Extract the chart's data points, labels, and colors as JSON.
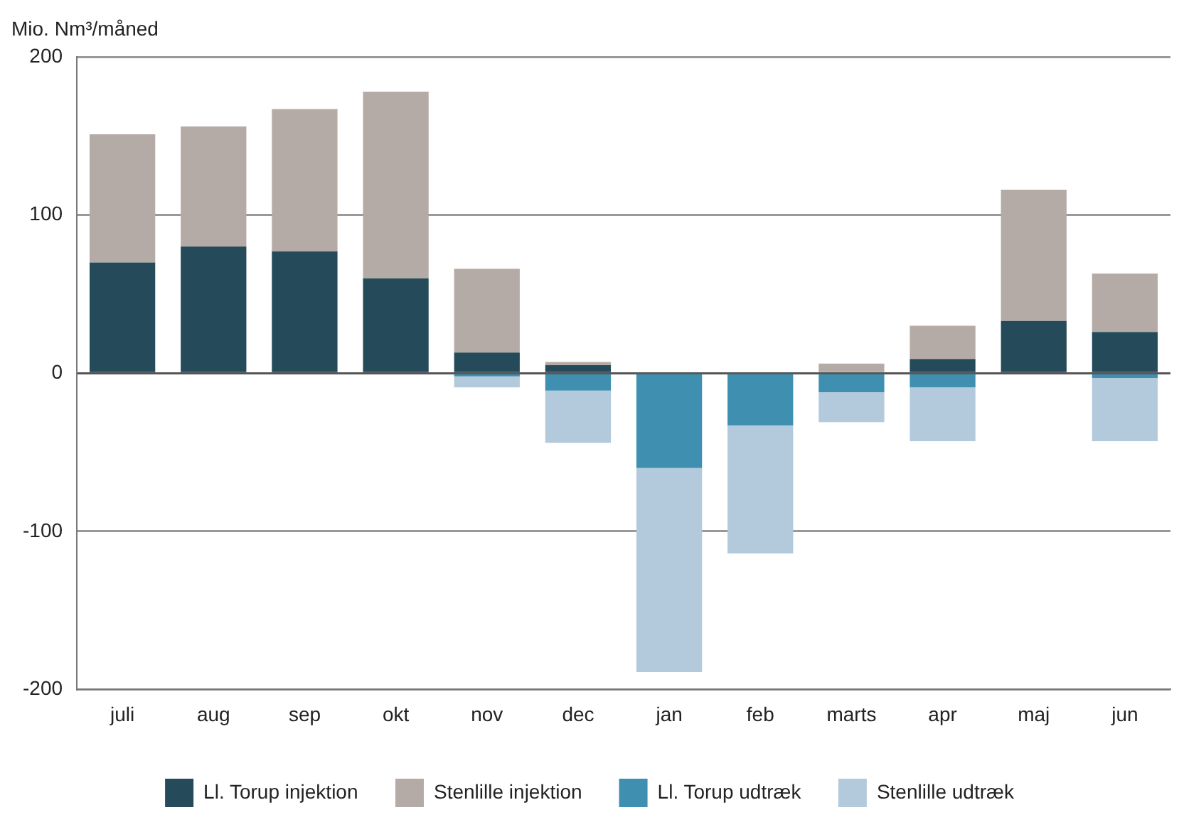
{
  "chart_data": {
    "type": "bar",
    "stacked": true,
    "ylabel": "Mio. Nm³/måned",
    "categories": [
      "juli",
      "aug",
      "sep",
      "okt",
      "nov",
      "dec",
      "jan",
      "feb",
      "marts",
      "apr",
      "maj",
      "jun"
    ],
    "series": [
      {
        "name": "Ll. Torup injektion",
        "color": "#254b5a",
        "values": [
          70,
          80,
          77,
          60,
          13,
          5,
          null,
          null,
          null,
          9,
          33,
          26
        ]
      },
      {
        "name": "Stenlille injektion",
        "color": "#b5aba6",
        "values": [
          81,
          76,
          90,
          118,
          53,
          2,
          null,
          null,
          6,
          21,
          83,
          37
        ]
      },
      {
        "name": "Ll. Torup udtræk",
        "color": "#3e8fb0",
        "values": [
          null,
          null,
          null,
          null,
          -2,
          -11,
          -60,
          -33,
          -12,
          -9,
          null,
          -3
        ]
      },
      {
        "name": "Stenlille udtræk",
        "color": "#b3c9dc",
        "values": [
          null,
          null,
          null,
          null,
          -7,
          -33,
          -129,
          -81,
          -19,
          -34,
          null,
          -40
        ]
      }
    ],
    "ylim": [
      -200,
      200
    ],
    "yticks": [
      -200,
      -100,
      0,
      100,
      200
    ],
    "grid": "y",
    "legend": "bottom"
  }
}
